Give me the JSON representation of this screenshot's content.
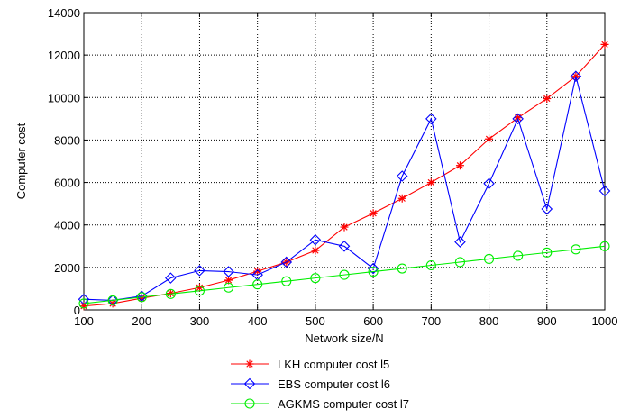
{
  "chart_data": {
    "type": "line",
    "title": "",
    "xlabel": "Network size/N",
    "ylabel": "Computer cost",
    "xlim": [
      100,
      1000
    ],
    "ylim": [
      0,
      14000
    ],
    "xticks": [
      100,
      200,
      300,
      400,
      500,
      600,
      700,
      800,
      900,
      1000
    ],
    "yticks": [
      0,
      2000,
      4000,
      6000,
      8000,
      10000,
      12000,
      14000
    ],
    "grid": true,
    "grid_style": "dotted",
    "legend_position": "bottom-center, below plot",
    "x": [
      100,
      150,
      200,
      250,
      300,
      350,
      400,
      450,
      500,
      550,
      600,
      650,
      700,
      750,
      800,
      850,
      900,
      950,
      1000
    ],
    "series": [
      {
        "name": "LKH computer cost l5",
        "color": "#ff0000",
        "marker": "star",
        "values": [
          180,
          300,
          550,
          780,
          1050,
          1400,
          1820,
          2250,
          2800,
          3900,
          4550,
          5250,
          6000,
          6800,
          8050,
          9050,
          9950,
          11000,
          12500
        ]
      },
      {
        "name": "EBS computer cost l6",
        "color": "#0000ff",
        "marker": "diamond",
        "values": [
          500,
          450,
          650,
          1500,
          1850,
          1800,
          1650,
          2250,
          3300,
          3000,
          1950,
          6300,
          9000,
          3200,
          5950,
          9000,
          4750,
          11000,
          5600
        ]
      },
      {
        "name": "AGKMS computer cost l7",
        "color": "#00ee00",
        "marker": "circle",
        "values": [
          300,
          450,
          600,
          750,
          900,
          1050,
          1200,
          1350,
          1500,
          1650,
          1800,
          1950,
          2100,
          2250,
          2400,
          2550,
          2700,
          2850,
          3000
        ]
      }
    ]
  }
}
